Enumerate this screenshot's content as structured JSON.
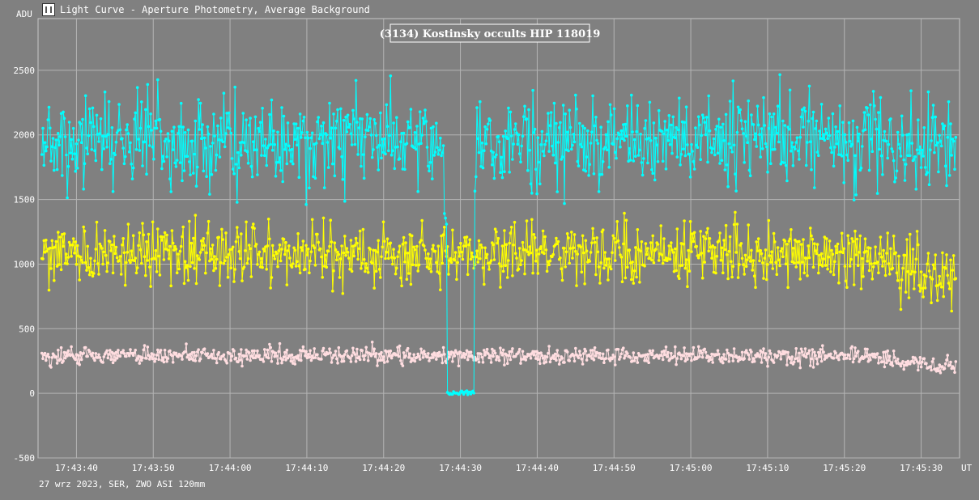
{
  "window": {
    "title": "Light Curve - Aperture Photometry, Average Background",
    "icon": "light-curve-app-icon"
  },
  "footer": {
    "text": "27 wrz 2023, SER, ZWO ASI 120mm"
  },
  "chart_data": {
    "type": "scatter",
    "title": "(3134) Kostinsky occults HIP 118019",
    "ylabel": "ADU",
    "xlabel": "UT",
    "ylim": [
      -500,
      2900
    ],
    "yticks": [
      -500,
      0,
      500,
      1000,
      1500,
      2000,
      2500
    ],
    "ytick_labels": [
      "-500",
      "0",
      "500",
      "1000",
      "1500",
      "2000",
      "2500"
    ],
    "xlim": [
      "17:43:35",
      "17:45:35"
    ],
    "xticks": [
      "17:43:40",
      "17:43:50",
      "17:44:00",
      "17:44:10",
      "17:44:20",
      "17:44:30",
      "17:44:40",
      "17:44:50",
      "17:45:00",
      "17:45:10",
      "17:45:20",
      "17:45:30"
    ],
    "grid": true,
    "markers": "points connected by lines",
    "series": [
      {
        "color": "#00ffff",
        "mean": 1950,
        "noise": 300,
        "events": [
          {
            "start": "17:44:28.3",
            "end": "17:44:31.8",
            "level": 0
          }
        ],
        "gaps": [
          {
            "start": "17:44:27.8",
            "end": "17:44:28.3",
            "level": 1250
          }
        ]
      },
      {
        "color": "#ffff00",
        "mean": 1080,
        "noise": 190,
        "trend_end": 880
      },
      {
        "color": "#ffdde0",
        "mean": 290,
        "noise": 55,
        "trend_end": 190
      }
    ]
  }
}
